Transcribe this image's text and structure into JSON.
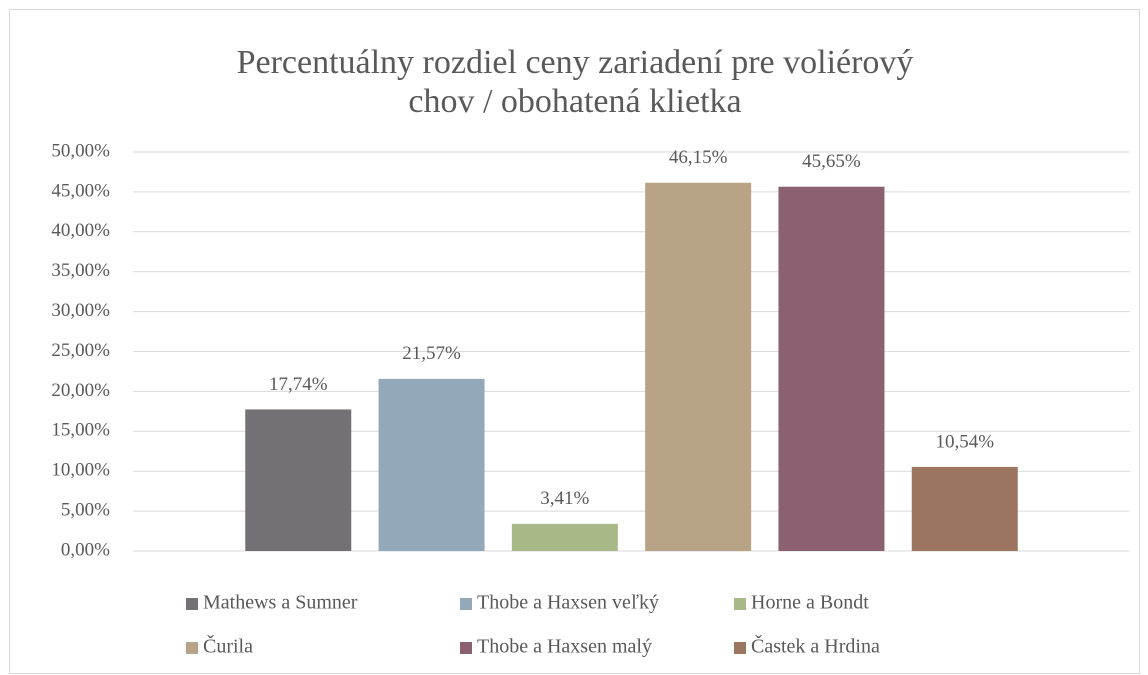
{
  "chart_data": {
    "type": "bar",
    "title": [
      "Percentuálny rozdiel ceny zariadení pre voliérový",
      "chov / obohatená klietka"
    ],
    "categories": [
      null
    ],
    "series": [
      {
        "name": "Mathews a Sumner",
        "color": "#737175",
        "values": [
          17.74
        ],
        "value_labels": [
          "17,74%"
        ]
      },
      {
        "name": "Thobe a Haxsen veľký",
        "color": "#93a8b8",
        "values": [
          21.57
        ],
        "value_labels": [
          "21,57%"
        ]
      },
      {
        "name": "Horne a Bondt",
        "color": "#a8b887",
        "values": [
          3.41
        ],
        "value_labels": [
          "3,41%"
        ]
      },
      {
        "name": "Čurila",
        "color": "#b9a386",
        "values": [
          46.15
        ],
        "value_labels": [
          "46,15%"
        ]
      },
      {
        "name": "Thobe a Haxsen malý",
        "color": "#8b6070",
        "values": [
          45.65
        ],
        "value_labels": [
          "45,65%"
        ]
      },
      {
        "name": "Častek a Hrdina",
        "color": "#9b7560",
        "values": [
          10.54
        ],
        "value_labels": [
          "10,54%"
        ]
      }
    ],
    "ylim": [
      0,
      50
    ],
    "yticks": [
      {
        "value": 0,
        "label": "0,00%"
      },
      {
        "value": 5,
        "label": "5,00%"
      },
      {
        "value": 10,
        "label": "10,00%"
      },
      {
        "value": 15,
        "label": "15,00%"
      },
      {
        "value": 20,
        "label": "20,00%"
      },
      {
        "value": 25,
        "label": "25,00%"
      },
      {
        "value": 30,
        "label": "30,00%"
      },
      {
        "value": 35,
        "label": "35,00%"
      },
      {
        "value": 40,
        "label": "40,00%"
      },
      {
        "value": 45,
        "label": "45,00%"
      },
      {
        "value": 50,
        "label": "50,00%"
      }
    ],
    "grid": true,
    "legend": "bottom"
  }
}
